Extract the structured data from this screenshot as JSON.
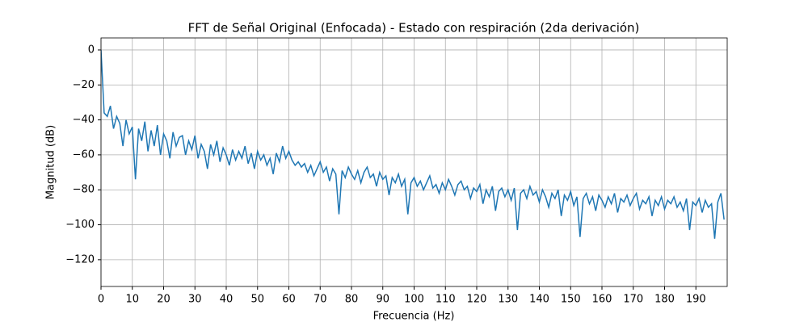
{
  "chart_data": {
    "type": "line",
    "title": "FFT de Señal Original (Enfocada) - Estado con respiración (2da derivación)",
    "x_label": "Frecuencia (Hz)",
    "y_label": "Magnitud (dB)",
    "x": [
      0,
      1,
      2,
      3,
      4,
      5,
      6,
      7,
      8,
      9,
      10,
      11,
      12,
      13,
      14,
      15,
      16,
      17,
      18,
      19,
      20,
      21,
      22,
      23,
      24,
      25,
      26,
      27,
      28,
      29,
      30,
      31,
      32,
      33,
      34,
      35,
      36,
      37,
      38,
      39,
      40,
      41,
      42,
      43,
      44,
      45,
      46,
      47,
      48,
      49,
      50,
      51,
      52,
      53,
      54,
      55,
      56,
      57,
      58,
      59,
      60,
      61,
      62,
      63,
      64,
      65,
      66,
      67,
      68,
      69,
      70,
      71,
      72,
      73,
      74,
      75,
      76,
      77,
      78,
      79,
      80,
      81,
      82,
      83,
      84,
      85,
      86,
      87,
      88,
      89,
      90,
      91,
      92,
      93,
      94,
      95,
      96,
      97,
      98,
      99,
      100,
      101,
      102,
      103,
      104,
      105,
      106,
      107,
      108,
      109,
      110,
      111,
      112,
      113,
      114,
      115,
      116,
      117,
      118,
      119,
      120,
      121,
      122,
      123,
      124,
      125,
      126,
      127,
      128,
      129,
      130,
      131,
      132,
      133,
      134,
      135,
      136,
      137,
      138,
      139,
      140,
      141,
      142,
      143,
      144,
      145,
      146,
      147,
      148,
      149,
      150,
      151,
      152,
      153,
      154,
      155,
      156,
      157,
      158,
      159,
      160,
      161,
      162,
      163,
      164,
      165,
      166,
      167,
      168,
      169,
      170,
      171,
      172,
      173,
      174,
      175,
      176,
      177,
      178,
      179,
      180,
      181,
      182,
      183,
      184,
      185,
      186,
      187,
      188,
      189,
      190,
      191,
      192,
      193,
      194,
      195,
      196,
      197,
      198,
      199
    ],
    "series": [
      {
        "name": "FFT",
        "color": "#1f77b4",
        "values": [
          0,
          -36,
          -38,
          -32,
          -45,
          -38,
          -42,
          -55,
          -40,
          -48,
          -44,
          -74,
          -45,
          -52,
          -41,
          -58,
          -46,
          -55,
          -43,
          -60,
          -48,
          -52,
          -62,
          -47,
          -55,
          -50,
          -49,
          -60,
          -52,
          -57,
          -49,
          -62,
          -54,
          -58,
          -68,
          -54,
          -60,
          -52,
          -64,
          -56,
          -60,
          -66,
          -57,
          -63,
          -58,
          -62,
          -55,
          -65,
          -59,
          -68,
          -58,
          -63,
          -60,
          -66,
          -62,
          -71,
          -59,
          -64,
          -55,
          -62,
          -58,
          -63,
          -66,
          -64,
          -67,
          -65,
          -70,
          -66,
          -72,
          -68,
          -64,
          -70,
          -67,
          -75,
          -68,
          -71,
          -94,
          -69,
          -73,
          -67,
          -71,
          -74,
          -69,
          -76,
          -70,
          -67,
          -73,
          -71,
          -78,
          -70,
          -74,
          -72,
          -83,
          -73,
          -76,
          -71,
          -78,
          -74,
          -94,
          -76,
          -73,
          -78,
          -75,
          -80,
          -76,
          -72,
          -79,
          -77,
          -82,
          -76,
          -80,
          -74,
          -78,
          -83,
          -77,
          -75,
          -80,
          -78,
          -85,
          -79,
          -81,
          -77,
          -88,
          -80,
          -84,
          -78,
          -92,
          -81,
          -79,
          -84,
          -80,
          -86,
          -79,
          -103,
          -82,
          -80,
          -85,
          -78,
          -83,
          -81,
          -87,
          -80,
          -84,
          -90,
          -82,
          -85,
          -80,
          -95,
          -83,
          -86,
          -81,
          -89,
          -84,
          -107,
          -85,
          -82,
          -88,
          -84,
          -92,
          -83,
          -86,
          -90,
          -84,
          -88,
          -82,
          -93,
          -85,
          -87,
          -83,
          -89,
          -85,
          -82,
          -91,
          -86,
          -88,
          -84,
          -95,
          -86,
          -89,
          -84,
          -91,
          -86,
          -88,
          -84,
          -90,
          -87,
          -92,
          -85,
          -103,
          -87,
          -89,
          -85,
          -93,
          -86,
          -90,
          -88,
          -108,
          -87,
          -82,
          -97
        ]
      }
    ],
    "xlim": [
      0,
      200
    ],
    "ylim": [
      -135.3,
      6.9
    ],
    "xticks": [
      0,
      10,
      20,
      30,
      40,
      50,
      60,
      70,
      80,
      90,
      100,
      110,
      120,
      130,
      140,
      150,
      160,
      170,
      180,
      190
    ],
    "yticks": [
      0,
      {
        "value": -20,
        "label": "−20"
      },
      {
        "value": -40,
        "label": "−40"
      },
      {
        "value": -60,
        "label": "−60"
      },
      {
        "value": -80,
        "label": "−80"
      },
      {
        "value": -100,
        "label": "−100"
      },
      {
        "value": -120,
        "label": "−120"
      }
    ],
    "grid": true
  }
}
